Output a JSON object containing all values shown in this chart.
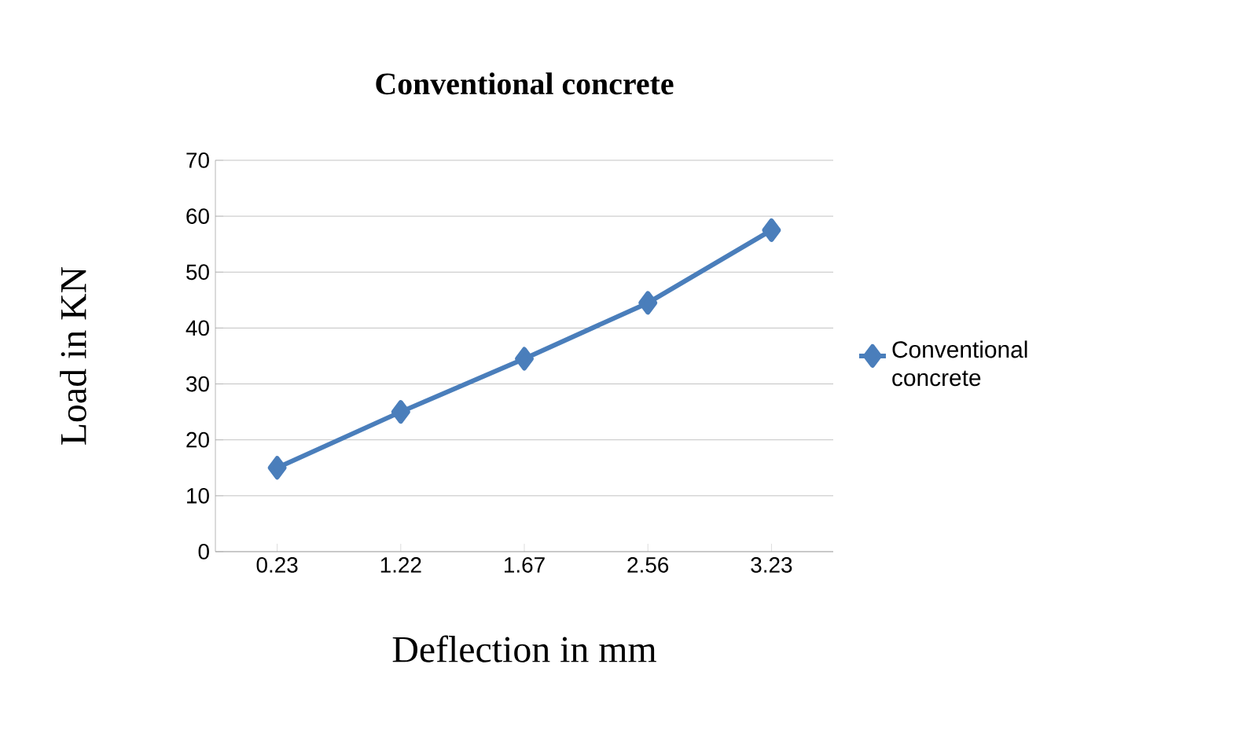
{
  "chart_data": {
    "type": "line",
    "title": "Conventional concrete",
    "xlabel": "Deflection in mm",
    "ylabel": "Load in KN",
    "categories": [
      "0.23",
      "1.22",
      "1.67",
      "2.56",
      "3.23"
    ],
    "series": [
      {
        "name": "Conventional concrete",
        "color": "#4a7ebb",
        "values": [
          15,
          25,
          34.5,
          44.5,
          57.5
        ]
      }
    ],
    "ylim": [
      0,
      70
    ],
    "yticks": [
      0,
      10,
      20,
      30,
      40,
      50,
      60,
      70
    ],
    "grid": "y",
    "legend": "right",
    "marker": "diamond",
    "line_style": "solid"
  }
}
